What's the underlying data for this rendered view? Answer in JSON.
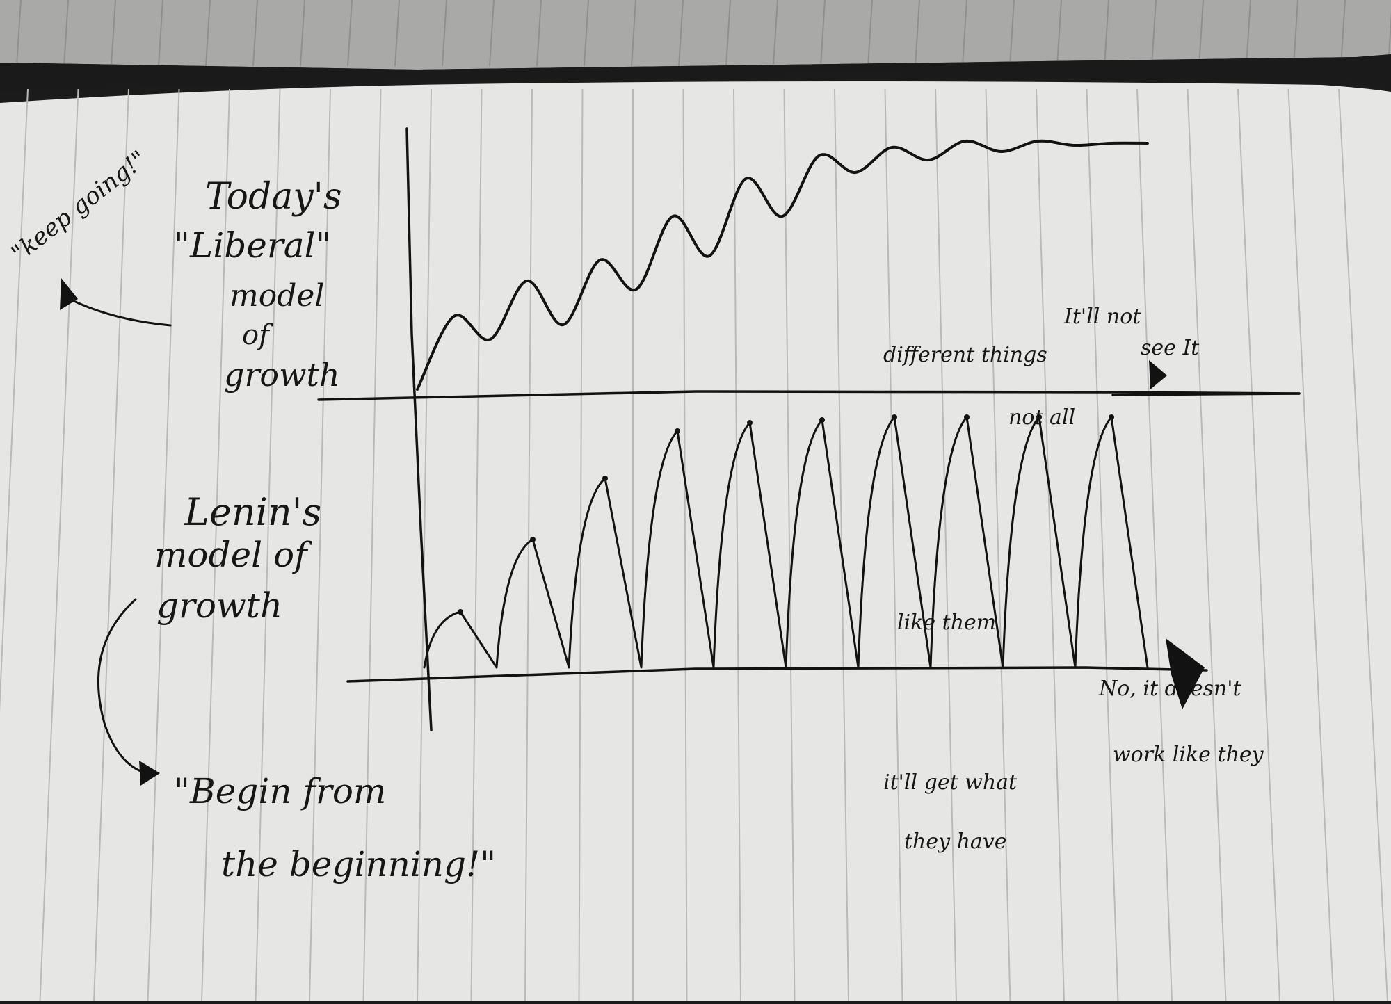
{
  "notes": {
    "keep_going": "\"keep going!\"",
    "todays": "Today's",
    "liberal": "\"Liberal\"",
    "model": "model",
    "of": "of",
    "growth": "growth",
    "lenins": "Lenin's",
    "model_of": "model of",
    "growth2": "growth",
    "begin_from": "\"Begin from",
    "the_beginning": "the beginning!\""
  },
  "faint_backpage": [
    "It'll not",
    "different things",
    "see It",
    "not all",
    "like them",
    "No, it doesn't",
    "work like they",
    "it'll get what",
    "they have"
  ],
  "colors": {
    "paper": "#e6e6e4",
    "rule": "#b9b9b7",
    "ink": "#121212",
    "background": "#1b1b1b"
  },
  "chart_data": {
    "type": "line",
    "title": "",
    "xlabel": "",
    "ylabel": "",
    "grid": false,
    "series": [
      {
        "name": "Today's \"Liberal\" model of growth",
        "x": [
          0,
          1,
          2,
          3,
          4,
          5,
          6,
          7,
          8,
          9,
          10,
          11,
          12,
          13,
          14,
          15,
          16,
          17,
          18,
          19,
          20
        ],
        "y": [
          0,
          3.5,
          2.4,
          5.2,
          3.1,
          6.2,
          4.8,
          8.3,
          6.4,
          10.1,
          8.3,
          11.2,
          10.4,
          11.6,
          11.0,
          11.9,
          11.4,
          11.9,
          11.7,
          11.8,
          11.8
        ]
      },
      {
        "name": "Lenin's model of growth",
        "x": [
          0,
          1,
          2,
          3,
          4,
          5,
          6,
          7,
          8,
          9,
          10,
          11,
          12,
          13,
          14,
          15,
          16,
          17,
          18,
          19,
          20
        ],
        "y": [
          0,
          2.0,
          0,
          4.6,
          0,
          6.8,
          0,
          8.5,
          0,
          8.8,
          0,
          8.9,
          0,
          9.0,
          0,
          9.0,
          0,
          9.0,
          0,
          9.0,
          0
        ]
      }
    ]
  }
}
